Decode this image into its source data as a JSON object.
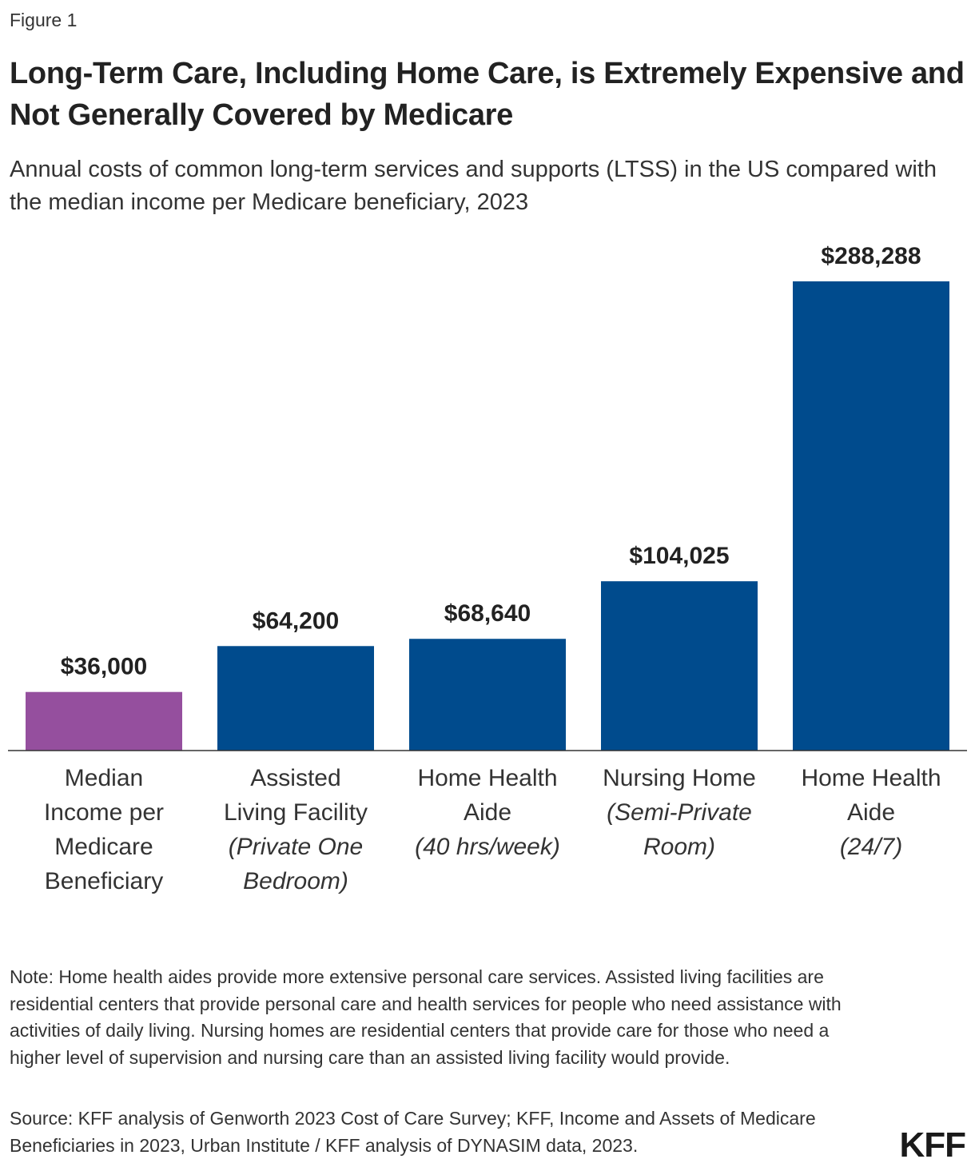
{
  "figure_label": "Figure 1",
  "title": "Long-Term Care, Including Home Care, is Extremely Expensive and Not Generally Covered by Medicare",
  "subtitle": "Annual costs of common long-term services and supports (LTSS) in the US compared with the median income per Medicare beneficiary, 2023",
  "chart_data": {
    "type": "bar",
    "categories": [
      {
        "lines": [
          "Median",
          "Income per",
          "Medicare",
          "Beneficiary"
        ],
        "italic_lines": []
      },
      {
        "lines": [
          "Assisted",
          "Living Facility"
        ],
        "italic_lines": [
          "(Private One",
          "Bedroom)"
        ]
      },
      {
        "lines": [
          "Home Health",
          "Aide"
        ],
        "italic_lines": [
          "(40 hrs/week)"
        ]
      },
      {
        "lines": [
          "Nursing Home"
        ],
        "italic_lines": [
          "(Semi-Private",
          "Room)"
        ]
      },
      {
        "lines": [
          "Home Health",
          "Aide"
        ],
        "italic_lines": [
          "(24/7)"
        ]
      }
    ],
    "values": [
      36000,
      64200,
      68640,
      104025,
      288288
    ],
    "value_labels": [
      "$36,000",
      "$64,200",
      "$68,640",
      "$104,025",
      "$288,288"
    ],
    "colors": [
      "#954F9E",
      "#004B8D",
      "#004B8D",
      "#004B8D",
      "#004B8D"
    ],
    "ylim": [
      0,
      288288
    ],
    "grid": false,
    "legend": "none"
  },
  "note": "Note: Home health aides provide more extensive personal care services. Assisted living facilities are residential centers that provide personal care and health services for people who need assistance with activities of daily living. Nursing homes are residential centers that provide care for those who need a higher level of supervision and nursing care than an assisted living facility would provide.",
  "source": "Source: KFF analysis of Genworth 2023 Cost of Care Survey; KFF, Income and Assets of Medicare Beneficiaries in 2023, Urban Institute / KFF analysis of DYNASIM data, 2023.",
  "logo": "KFF"
}
